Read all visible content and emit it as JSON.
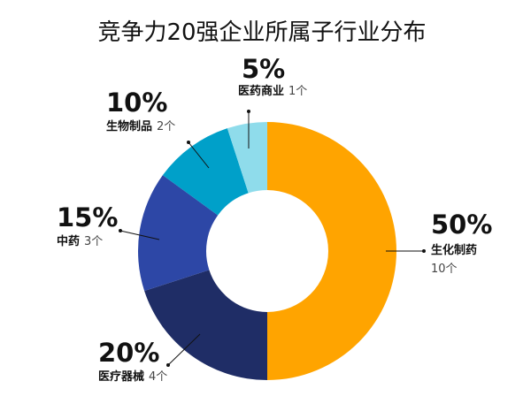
{
  "chart_data": {
    "type": "donut",
    "title": "竞争力20强企业所属子行业分布",
    "total": 20,
    "slices": [
      {
        "category": "生化制药",
        "percent_label": "50%",
        "count_label": "10个",
        "value": 10,
        "color": "#FFA400"
      },
      {
        "category": "医疗器械",
        "percent_label": "20%",
        "count_label": "4个",
        "value": 4,
        "color": "#1F2D66"
      },
      {
        "category": "中药",
        "percent_label": "15%",
        "count_label": "3个",
        "value": 3,
        "color": "#2D47A6"
      },
      {
        "category": "生物制品",
        "percent_label": "10%",
        "count_label": "2个",
        "value": 2,
        "color": "#00A0C9"
      },
      {
        "category": "医药商业",
        "percent_label": "5%",
        "count_label": "1个",
        "value": 1,
        "color": "#8FDCEB"
      }
    ]
  }
}
